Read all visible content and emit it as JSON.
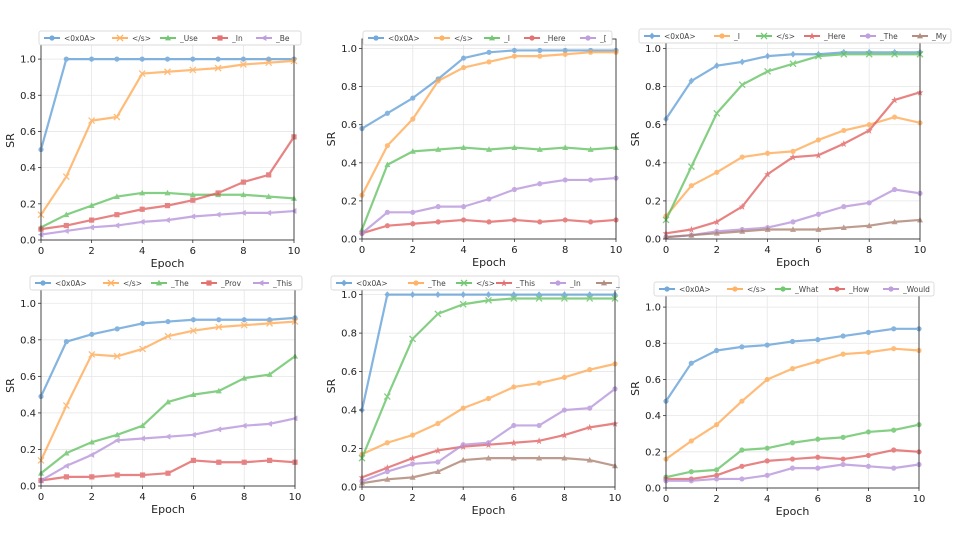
{
  "figure": {
    "xlabel": "Epoch",
    "ylabel": "SR"
  },
  "colors": {
    "blue": "#5b9bd5",
    "orange": "#ffa64d",
    "green": "#5cbf5c",
    "red": "#e05a5a",
    "purple": "#b48fd9",
    "brown": "#a87c6a"
  },
  "chart_data": [
    {
      "type": "line",
      "xlabel": "Epoch",
      "ylabel": "SR",
      "xlim": [
        0,
        10
      ],
      "ylim": [
        0,
        1.1
      ],
      "xticks": [
        "0",
        "2",
        "4",
        "6",
        "8",
        "10"
      ],
      "yticks": [
        "0.0",
        "0.2",
        "0.4",
        "0.6",
        "0.8",
        "1.0"
      ],
      "x": [
        0,
        1,
        2,
        3,
        4,
        5,
        6,
        7,
        8,
        9,
        10
      ],
      "series": [
        {
          "name": "<0x0A>",
          "color": "blue",
          "marker": "o",
          "values": [
            0.5,
            1.0,
            1.0,
            1.0,
            1.0,
            1.0,
            1.0,
            1.0,
            1.0,
            1.0,
            1.0
          ]
        },
        {
          "name": "</s>",
          "color": "orange",
          "marker": "x",
          "values": [
            0.14,
            0.35,
            0.66,
            0.68,
            0.92,
            0.93,
            0.94,
            0.95,
            0.97,
            0.98,
            0.99
          ]
        },
        {
          "name": "_Use",
          "color": "green",
          "marker": "^",
          "values": [
            0.07,
            0.14,
            0.19,
            0.24,
            0.26,
            0.26,
            0.25,
            0.25,
            0.25,
            0.24,
            0.23
          ]
        },
        {
          "name": "_In",
          "color": "red",
          "marker": "s",
          "values": [
            0.06,
            0.08,
            0.11,
            0.14,
            0.17,
            0.19,
            0.22,
            0.26,
            0.32,
            0.36,
            0.57
          ]
        },
        {
          "name": "_Be",
          "color": "purple",
          "marker": "<",
          "values": [
            0.03,
            0.05,
            0.07,
            0.08,
            0.1,
            0.11,
            0.13,
            0.14,
            0.15,
            0.15,
            0.16
          ]
        }
      ]
    },
    {
      "type": "line",
      "xlabel": "Epoch",
      "ylabel": "SR",
      "xlim": [
        0,
        10
      ],
      "ylim": [
        0,
        1.05
      ],
      "xticks": [
        "0",
        "2",
        "4",
        "6",
        "8",
        "10"
      ],
      "yticks": [
        "0.0",
        "0.2",
        "0.4",
        "0.6",
        "0.8",
        "1.0"
      ],
      "x": [
        0,
        1,
        2,
        3,
        4,
        5,
        6,
        7,
        8,
        9,
        10
      ],
      "series": [
        {
          "name": "<0x0A>",
          "color": "blue",
          "marker": "o",
          "values": [
            0.58,
            0.66,
            0.74,
            0.84,
            0.95,
            0.98,
            0.99,
            0.99,
            0.99,
            0.99,
            0.99
          ]
        },
        {
          "name": "</s>",
          "color": "orange",
          "marker": "o",
          "values": [
            0.23,
            0.49,
            0.63,
            0.83,
            0.9,
            0.93,
            0.96,
            0.96,
            0.97,
            0.98,
            0.98
          ]
        },
        {
          "name": "_I",
          "color": "green",
          "marker": "^",
          "values": [
            0.05,
            0.39,
            0.46,
            0.47,
            0.48,
            0.47,
            0.48,
            0.47,
            0.48,
            0.47,
            0.48
          ]
        },
        {
          "name": "_Here",
          "color": "red",
          "marker": "o",
          "values": [
            0.03,
            0.07,
            0.08,
            0.09,
            0.1,
            0.09,
            0.1,
            0.09,
            0.1,
            0.09,
            0.1
          ]
        },
        {
          "name": "_[",
          "color": "purple",
          "marker": "o",
          "values": [
            0.03,
            0.14,
            0.14,
            0.17,
            0.17,
            0.21,
            0.26,
            0.29,
            0.31,
            0.31,
            0.32
          ]
        }
      ]
    },
    {
      "type": "line",
      "xlabel": "Epoch",
      "ylabel": "SR",
      "xlim": [
        0,
        10
      ],
      "ylim": [
        0,
        1.05
      ],
      "xticks": [
        "0",
        "2",
        "4",
        "6",
        "8",
        "10"
      ],
      "yticks": [
        "0.0",
        "0.2",
        "0.4",
        "0.6",
        "0.8",
        "1.0"
      ],
      "x": [
        0,
        1,
        2,
        3,
        4,
        5,
        6,
        7,
        8,
        9,
        10
      ],
      "series": [
        {
          "name": "<0x0A>",
          "color": "blue",
          "marker": "d",
          "values": [
            0.63,
            0.83,
            0.91,
            0.93,
            0.96,
            0.97,
            0.97,
            0.98,
            0.98,
            0.98,
            0.98
          ]
        },
        {
          "name": "_I",
          "color": "orange",
          "marker": "o",
          "values": [
            0.12,
            0.28,
            0.35,
            0.43,
            0.45,
            0.46,
            0.52,
            0.57,
            0.6,
            0.64,
            0.61
          ]
        },
        {
          "name": "</s>",
          "color": "green",
          "marker": "x",
          "values": [
            0.1,
            0.38,
            0.66,
            0.81,
            0.88,
            0.92,
            0.96,
            0.97,
            0.97,
            0.97,
            0.97
          ]
        },
        {
          "name": "_Here",
          "color": "red",
          "marker": "*",
          "values": [
            0.03,
            0.05,
            0.09,
            0.17,
            0.34,
            0.43,
            0.44,
            0.5,
            0.57,
            0.73,
            0.77
          ]
        },
        {
          "name": "_The",
          "color": "purple",
          "marker": "o",
          "values": [
            0.01,
            0.02,
            0.04,
            0.05,
            0.06,
            0.09,
            0.13,
            0.17,
            0.19,
            0.26,
            0.24
          ]
        },
        {
          "name": "_My",
          "color": "brown",
          "marker": "^",
          "values": [
            0.01,
            0.02,
            0.03,
            0.04,
            0.05,
            0.05,
            0.05,
            0.06,
            0.07,
            0.09,
            0.1
          ]
        }
      ]
    },
    {
      "type": "line",
      "xlabel": "Epoch",
      "ylabel": "SR",
      "xlim": [
        0,
        10
      ],
      "ylim": [
        0,
        1.1
      ],
      "xticks": [
        "0",
        "2",
        "4",
        "6",
        "8",
        "10"
      ],
      "yticks": [
        "0.0",
        "0.2",
        "0.4",
        "0.6",
        "0.8",
        "1.0"
      ],
      "x": [
        0,
        1,
        2,
        3,
        4,
        5,
        6,
        7,
        8,
        9,
        10
      ],
      "series": [
        {
          "name": "<0x0A>",
          "color": "blue",
          "marker": "o",
          "values": [
            0.49,
            0.79,
            0.83,
            0.86,
            0.89,
            0.9,
            0.91,
            0.91,
            0.91,
            0.91,
            0.92
          ]
        },
        {
          "name": "</s>",
          "color": "orange",
          "marker": "x",
          "values": [
            0.14,
            0.44,
            0.72,
            0.71,
            0.75,
            0.82,
            0.85,
            0.87,
            0.88,
            0.89,
            0.9
          ]
        },
        {
          "name": "_The",
          "color": "green",
          "marker": "^",
          "values": [
            0.07,
            0.18,
            0.24,
            0.28,
            0.33,
            0.46,
            0.5,
            0.52,
            0.59,
            0.61,
            0.71
          ]
        },
        {
          "name": "_Prov",
          "color": "red",
          "marker": "s",
          "values": [
            0.03,
            0.05,
            0.05,
            0.06,
            0.06,
            0.07,
            0.14,
            0.13,
            0.13,
            0.14,
            0.13
          ]
        },
        {
          "name": "_This",
          "color": "purple",
          "marker": "<",
          "values": [
            0.03,
            0.11,
            0.17,
            0.25,
            0.26,
            0.27,
            0.28,
            0.31,
            0.33,
            0.34,
            0.37
          ]
        }
      ]
    },
    {
      "type": "line",
      "xlabel": "Epoch",
      "ylabel": "SR",
      "xlim": [
        0,
        10
      ],
      "ylim": [
        0,
        1.05
      ],
      "xticks": [
        "0",
        "2",
        "4",
        "6",
        "8",
        "10"
      ],
      "yticks": [
        "0.0",
        "0.2",
        "0.4",
        "0.6",
        "0.8",
        "1.0"
      ],
      "x": [
        0,
        1,
        2,
        3,
        4,
        5,
        6,
        7,
        8,
        9,
        10
      ],
      "series": [
        {
          "name": "<0x0A>",
          "color": "blue",
          "marker": "d",
          "values": [
            0.4,
            1.0,
            1.0,
            1.0,
            1.0,
            1.0,
            1.0,
            1.0,
            1.0,
            1.0,
            1.0
          ]
        },
        {
          "name": "_The",
          "color": "orange",
          "marker": "o",
          "values": [
            0.17,
            0.23,
            0.27,
            0.33,
            0.41,
            0.46,
            0.52,
            0.54,
            0.57,
            0.61,
            0.64
          ]
        },
        {
          "name": "</s>",
          "color": "green",
          "marker": "x",
          "values": [
            0.15,
            0.47,
            0.77,
            0.9,
            0.95,
            0.97,
            0.98,
            0.98,
            0.98,
            0.98,
            0.98
          ]
        },
        {
          "name": "_This",
          "color": "red",
          "marker": "*",
          "values": [
            0.05,
            0.1,
            0.15,
            0.19,
            0.21,
            0.22,
            0.23,
            0.24,
            0.27,
            0.31,
            0.33
          ]
        },
        {
          "name": "_In",
          "color": "purple",
          "marker": "o",
          "values": [
            0.03,
            0.08,
            0.12,
            0.13,
            0.22,
            0.23,
            0.32,
            0.32,
            0.4,
            0.41,
            0.51
          ]
        },
        {
          "name": "_",
          "color": "brown",
          "marker": "^",
          "values": [
            0.02,
            0.04,
            0.05,
            0.08,
            0.14,
            0.15,
            0.15,
            0.15,
            0.15,
            0.14,
            0.11
          ]
        }
      ]
    },
    {
      "type": "line",
      "xlabel": "Epoch",
      "ylabel": "SR",
      "xlim": [
        0,
        10
      ],
      "ylim": [
        0,
        1.1
      ],
      "xticks": [
        "0",
        "2",
        "4",
        "6",
        "8",
        "10"
      ],
      "yticks": [
        "0.0",
        "0.2",
        "0.4",
        "0.6",
        "0.8",
        "1.0"
      ],
      "x": [
        0,
        1,
        2,
        3,
        4,
        5,
        6,
        7,
        8,
        9,
        10
      ],
      "series": [
        {
          "name": "<0x0A>",
          "color": "blue",
          "marker": "o",
          "values": [
            0.48,
            0.69,
            0.76,
            0.78,
            0.79,
            0.81,
            0.82,
            0.84,
            0.86,
            0.88,
            0.88
          ]
        },
        {
          "name": "</s>",
          "color": "orange",
          "marker": "o",
          "values": [
            0.16,
            0.26,
            0.35,
            0.48,
            0.6,
            0.66,
            0.7,
            0.74,
            0.75,
            0.77,
            0.76
          ]
        },
        {
          "name": "_What",
          "color": "green",
          "marker": "o",
          "values": [
            0.06,
            0.09,
            0.1,
            0.21,
            0.22,
            0.25,
            0.27,
            0.28,
            0.31,
            0.32,
            0.35
          ]
        },
        {
          "name": "_How",
          "color": "red",
          "marker": "o",
          "values": [
            0.05,
            0.05,
            0.07,
            0.12,
            0.15,
            0.16,
            0.17,
            0.16,
            0.18,
            0.21,
            0.2
          ]
        },
        {
          "name": "_Would",
          "color": "purple",
          "marker": "o",
          "values": [
            0.04,
            0.04,
            0.05,
            0.05,
            0.07,
            0.11,
            0.11,
            0.13,
            0.12,
            0.11,
            0.13
          ]
        }
      ]
    }
  ]
}
